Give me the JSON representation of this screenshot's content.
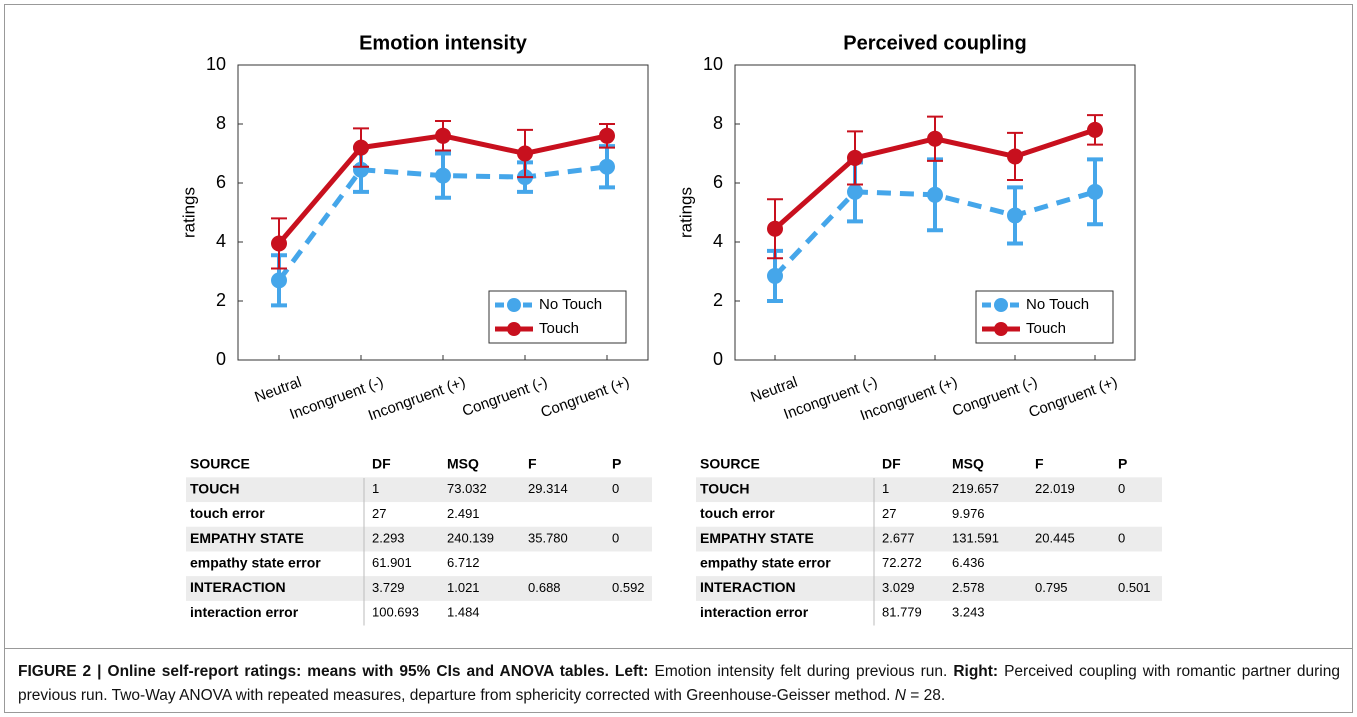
{
  "chart_data": [
    {
      "type": "line",
      "title": "Emotion intensity",
      "y_label": "ratings",
      "categories": [
        "Neutral",
        "Incongruent (-)",
        "Incongruent (+)",
        "Congruent (-)",
        "Congruent (+)"
      ],
      "ylim": [
        0,
        10
      ],
      "yticks": [
        0,
        2,
        4,
        6,
        8,
        10
      ],
      "legend": "lower right",
      "series": [
        {
          "name": "No Touch",
          "color": "#45a6ea",
          "dashed": true,
          "values": [
            2.7,
            6.45,
            6.25,
            6.2,
            6.55
          ],
          "errors": [
            0.85,
            0.75,
            0.75,
            0.5,
            0.7
          ]
        },
        {
          "name": "Touch",
          "color": "#c8101e",
          "dashed": false,
          "values": [
            3.95,
            7.2,
            7.6,
            7.0,
            7.6
          ],
          "errors": [
            0.85,
            0.65,
            0.5,
            0.8,
            0.4
          ]
        }
      ]
    },
    {
      "type": "line",
      "title": "Perceived coupling",
      "y_label": "ratings",
      "categories": [
        "Neutral",
        "Incongruent (-)",
        "Incongruent (+)",
        "Congruent (-)",
        "Congruent (+)"
      ],
      "ylim": [
        0,
        10
      ],
      "yticks": [
        0,
        2,
        4,
        6,
        8,
        10
      ],
      "legend": "lower right",
      "series": [
        {
          "name": "No Touch",
          "color": "#45a6ea",
          "dashed": true,
          "values": [
            2.85,
            5.7,
            5.6,
            4.9,
            5.7
          ],
          "errors": [
            0.85,
            1.0,
            1.2,
            0.95,
            1.1
          ]
        },
        {
          "name": "Touch",
          "color": "#c8101e",
          "dashed": false,
          "values": [
            4.45,
            6.85,
            7.5,
            6.9,
            7.8
          ],
          "errors": [
            1.0,
            0.9,
            0.75,
            0.8,
            0.5
          ]
        }
      ]
    }
  ],
  "tables": [
    {
      "header": [
        "SOURCE",
        "DF",
        "MSQ",
        "F",
        "P"
      ],
      "rows": [
        [
          "TOUCH",
          "1",
          "73.032",
          "29.314",
          "0"
        ],
        [
          "touch error",
          "27",
          "2.491"
        ],
        [
          "EMPATHY STATE",
          "2.293",
          "240.139",
          "35.780",
          "0"
        ],
        [
          "empathy state error",
          "61.901",
          "6.712"
        ],
        [
          "INTERACTION",
          "3.729",
          "1.021",
          "0.688",
          "0.592"
        ],
        [
          "interaction error",
          "100.693",
          "1.484"
        ]
      ]
    },
    {
      "header": [
        "SOURCE",
        "DF",
        "MSQ",
        "F",
        "P"
      ],
      "rows": [
        [
          "TOUCH",
          "1",
          "219.657",
          "22.019",
          "0"
        ],
        [
          "touch error",
          "27",
          "9.976"
        ],
        [
          "EMPATHY STATE",
          "2.677",
          "131.591",
          "20.445",
          "0"
        ],
        [
          "empathy state error",
          "72.272",
          "6.436"
        ],
        [
          "INTERACTION",
          "3.029",
          "2.578",
          "0.795",
          "0.501"
        ],
        [
          "interaction error",
          "81.779",
          "3.243"
        ]
      ]
    }
  ],
  "caption": {
    "label": "FIGURE 2 | Online self-report ratings: means with 95% CIs and ANOVA tables.",
    "left_label": "Left:",
    "left_text": "Emotion intensity felt during previous run.",
    "right_label": "Right:",
    "right_text": "Perceived coupling with romantic partner during previous run. Two-Way ANOVA with repeated measures, departure from sphericity corrected with Greenhouse-Geisser method.",
    "n_var": "N",
    "n_value": "= 28."
  }
}
